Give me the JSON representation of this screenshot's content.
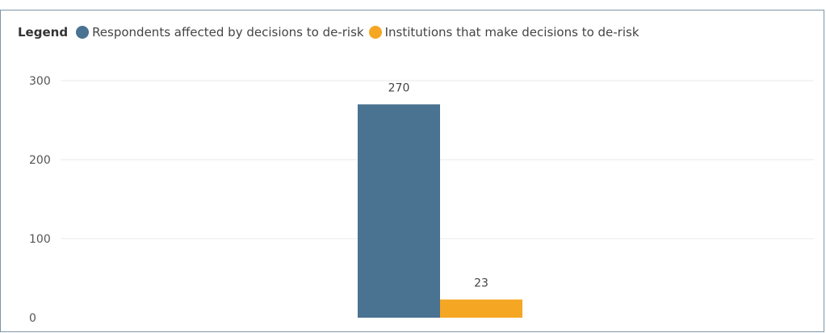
{
  "legend": {
    "title": "Legend",
    "items": [
      {
        "label": "Respondents affected by decisions to de-risk",
        "color": "#4a7291"
      },
      {
        "label": "Institutions that make decisions to de-risk",
        "color": "#f5a623"
      }
    ]
  },
  "chart_data": {
    "type": "bar",
    "categories": [
      ""
    ],
    "series": [
      {
        "name": "Respondents affected by decisions to de-risk",
        "values": [
          270
        ],
        "color": "#4a7291"
      },
      {
        "name": "Institutions that make decisions to de-risk",
        "values": [
          23
        ],
        "color": "#f5a623"
      }
    ],
    "ylim": [
      0,
      300
    ],
    "yticks": [
      0,
      100,
      200,
      300
    ],
    "data_labels": [
      "270",
      "23"
    ],
    "grid": true,
    "legend_position": "top-left"
  }
}
